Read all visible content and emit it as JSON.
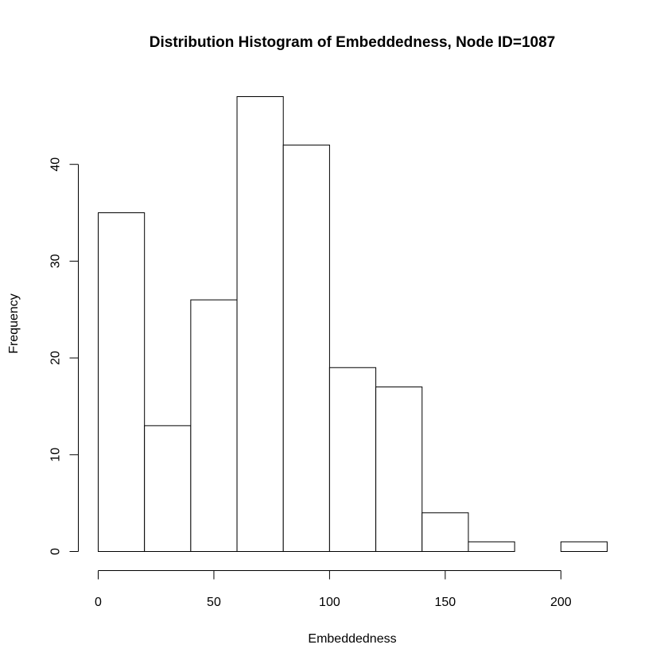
{
  "chart_data": {
    "type": "bar",
    "title": "Distribution Histogram of Embeddedness, Node ID=1087",
    "xlabel": "Embeddedness",
    "ylabel": "Frequency",
    "bins": [
      {
        "start": 0,
        "end": 20,
        "count": 35
      },
      {
        "start": 20,
        "end": 40,
        "count": 13
      },
      {
        "start": 40,
        "end": 60,
        "count": 26
      },
      {
        "start": 60,
        "end": 80,
        "count": 47
      },
      {
        "start": 80,
        "end": 100,
        "count": 42
      },
      {
        "start": 100,
        "end": 120,
        "count": 19
      },
      {
        "start": 120,
        "end": 140,
        "count": 17
      },
      {
        "start": 140,
        "end": 160,
        "count": 4
      },
      {
        "start": 160,
        "end": 180,
        "count": 1
      },
      {
        "start": 180,
        "end": 200,
        "count": 0
      },
      {
        "start": 200,
        "end": 220,
        "count": 1
      }
    ],
    "x_ticks": [
      0,
      50,
      100,
      150,
      200
    ],
    "y_ticks": [
      0,
      10,
      20,
      30,
      40
    ],
    "xlim": [
      0,
      220
    ],
    "ylim": [
      0,
      47
    ],
    "grid": false,
    "bar_fill": "#ffffff",
    "bar_stroke": "#000000"
  }
}
